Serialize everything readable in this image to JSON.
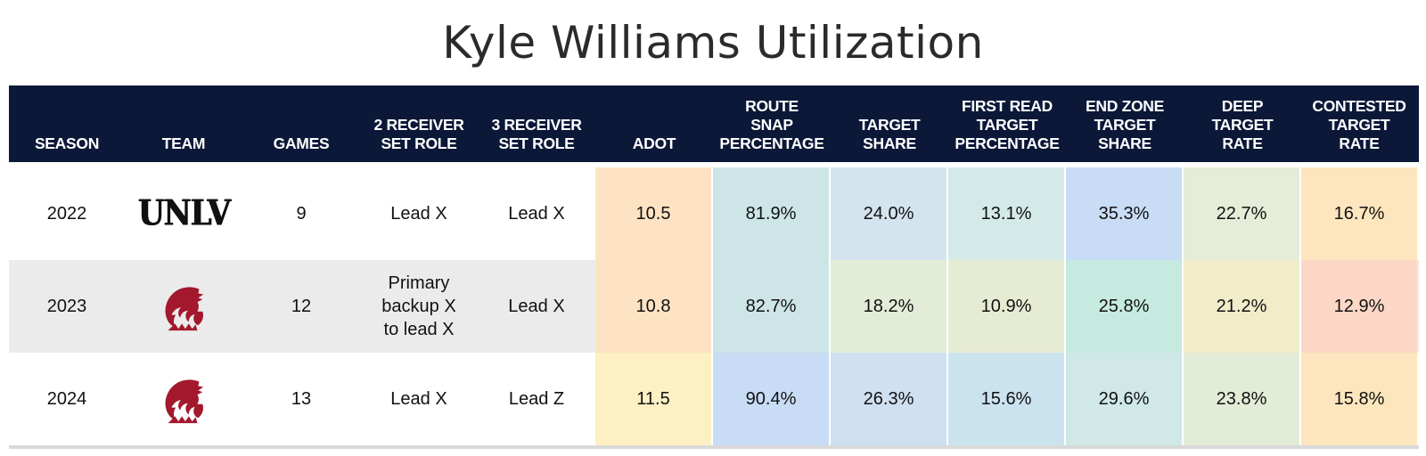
{
  "title": "Kyle Williams Utilization",
  "headers": [
    "SEASON",
    "TEAM",
    "GAMES",
    "2 RECEIVER\nSET ROLE",
    "3 RECEIVER\nSET ROLE",
    "ADOT",
    "ROUTE\nSNAP\nPERCENTAGE",
    "TARGET\nSHARE",
    "FIRST READ\nTARGET\nPERCENTAGE",
    "END ZONE\nTARGET\nSHARE",
    "DEEP\nTARGET\nRATE",
    "CONTESTED\nTARGET\nRATE"
  ],
  "rows": [
    {
      "season": "2022",
      "team_logo": "UNLV",
      "team_logo_icon": "unlv-wordmark-icon",
      "games": "9",
      "role2": "Lead X",
      "role3": "Lead X",
      "metrics": [
        "10.5",
        "81.9%",
        "24.0%",
        "13.1%",
        "35.3%",
        "22.7%",
        "16.7%"
      ],
      "colors": [
        "#fde3c3",
        "#cde5e7",
        "#d4e4ee",
        "#d3eae8",
        "#c9dcf5",
        "#e5ecd7",
        "#fde6bd"
      ]
    },
    {
      "season": "2023",
      "team_logo": "WSU",
      "team_logo_icon": "wsu-cougar-icon",
      "games": "12",
      "role2": "Primary\nbackup X\nto lead X",
      "role3": "Lead X",
      "metrics": [
        "10.8",
        "82.7%",
        "18.2%",
        "10.9%",
        "25.8%",
        "21.2%",
        "12.9%"
      ],
      "colors": [
        "#fde3c3",
        "#cde5e7",
        "#e3ecd6",
        "#e6ecd3",
        "#c6eadf",
        "#f1ecc9",
        "#fcd7c6"
      ]
    },
    {
      "season": "2024",
      "team_logo": "WSU",
      "team_logo_icon": "wsu-cougar-icon",
      "games": "13",
      "role2": "Lead X",
      "role3": "Lead Z",
      "metrics": [
        "11.5",
        "90.4%",
        "26.3%",
        "15.6%",
        "29.6%",
        "23.8%",
        "15.8%"
      ],
      "colors": [
        "#fdf0c2",
        "#c9dcf5",
        "#cfe0f1",
        "#cbe3ef",
        "#d0e8e8",
        "#e3ecd6",
        "#fde6bd"
      ]
    }
  ],
  "theme": {
    "header_bg": "#0c1838",
    "wsu_crimson": "#a3182c"
  }
}
